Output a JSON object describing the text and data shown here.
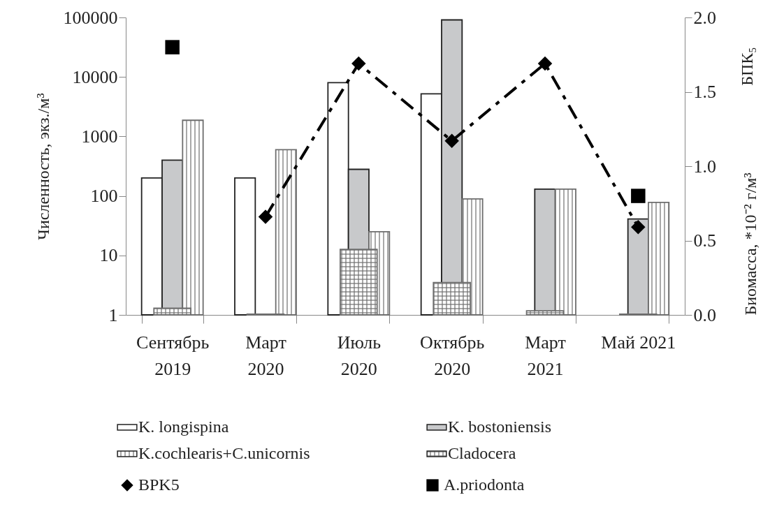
{
  "chart_data": {
    "type": "bar",
    "ylabel": "Численность, экз./м³",
    "y2label": "Биомасса, *10⁻² г/м³",
    "annotations": [
      "БПК₅"
    ],
    "categories": [
      "Сентябрь\n2019",
      "Март\n2020",
      "Июль\n2020",
      "Октябрь\n2020",
      "Март\n2021",
      "Май 2021"
    ],
    "log": "y",
    "ylim": [
      1,
      100000
    ],
    "yticks": [
      1,
      10,
      100,
      1000,
      10000,
      100000
    ],
    "y2lim": [
      0,
      2
    ],
    "y2ticks": [
      {
        "value": 0,
        "label": "0.0"
      },
      {
        "value": 0.5,
        "label": "0.5"
      },
      {
        "value": 1,
        "label": "1.0"
      },
      {
        "value": 1.5,
        "label": "1.5"
      },
      {
        "value": 2,
        "label": "2.0"
      }
    ],
    "grid": false,
    "legend": "bottom",
    "series": [
      {
        "name": "K. longispina",
        "color": "#ffffff",
        "values": [
          200,
          200,
          8000,
          5200,
          null,
          null
        ]
      },
      {
        "name": "K. bostoniensis",
        "color": "#c8c9cb",
        "values": [
          400,
          null,
          280,
          91000,
          130,
          41
        ]
      },
      {
        "name": "K.cochlearis+C.unicornis",
        "color": "#6e6e6e",
        "values": [
          1870,
          600,
          25,
          89,
          130,
          78
        ]
      },
      {
        "name": "Cladocera",
        "color": "#6e6e6e",
        "values": [
          1.3,
          1.03,
          12.6,
          3.5,
          1.17,
          1.03
        ]
      },
      {
        "name": "BPK5",
        "type": "line",
        "axis": "y2",
        "color": "#000000",
        "marker": "diamond",
        "line_style": "dashed",
        "values": [
          null,
          0.66,
          1.69,
          1.17,
          1.69,
          0.59
        ]
      },
      {
        "name": "A.priodonta",
        "type": "scatter",
        "axis": "y2",
        "color": "#000000",
        "marker": "square",
        "values": [
          1.8,
          null,
          null,
          null,
          null,
          0.8
        ]
      }
    ]
  }
}
